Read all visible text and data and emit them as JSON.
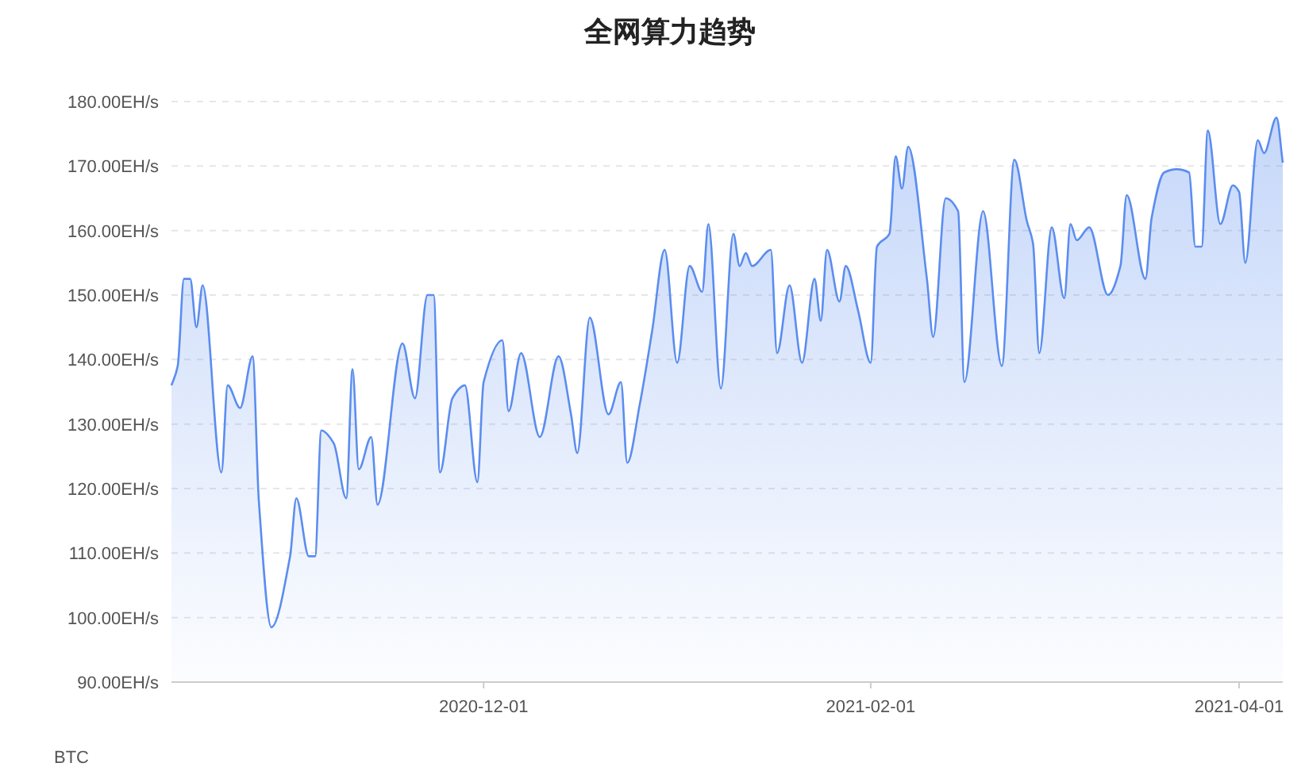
{
  "chart_data": {
    "type": "area",
    "title": "全网算力趋势",
    "annotations": [
      "BTC"
    ],
    "x": [
      "2020-10-12",
      "2020-10-13",
      "2020-10-14",
      "2020-10-15",
      "2020-10-16",
      "2020-10-17",
      "2020-10-20",
      "2020-10-21",
      "2020-10-23",
      "2020-10-25",
      "2020-10-26",
      "2020-10-28",
      "2020-10-31",
      "2020-11-01",
      "2020-11-03",
      "2020-11-04",
      "2020-11-05",
      "2020-11-07",
      "2020-11-09",
      "2020-11-10",
      "2020-11-11",
      "2020-11-13",
      "2020-11-14",
      "2020-11-18",
      "2020-11-20",
      "2020-11-22",
      "2020-11-23",
      "2020-11-24",
      "2020-11-26",
      "2020-11-28",
      "2020-11-30",
      "2020-12-01",
      "2020-12-04",
      "2020-12-05",
      "2020-12-07",
      "2020-12-10",
      "2020-12-13",
      "2020-12-15",
      "2020-12-16",
      "2020-12-18",
      "2020-12-21",
      "2020-12-23",
      "2020-12-24",
      "2020-12-26",
      "2020-12-28",
      "2020-12-30",
      "2021-01-01",
      "2021-01-03",
      "2021-01-05",
      "2021-01-06",
      "2021-01-08",
      "2021-01-10",
      "2021-01-11",
      "2021-01-12",
      "2021-01-13",
      "2021-01-16",
      "2021-01-17",
      "2021-01-19",
      "2021-01-21",
      "2021-01-23",
      "2021-01-24",
      "2021-01-25",
      "2021-01-27",
      "2021-01-28",
      "2021-01-30",
      "2021-02-01",
      "2021-02-02",
      "2021-02-04",
      "2021-02-05",
      "2021-02-06",
      "2021-02-07",
      "2021-02-10",
      "2021-02-11",
      "2021-02-13",
      "2021-02-15",
      "2021-02-16",
      "2021-02-19",
      "2021-02-22",
      "2021-02-24",
      "2021-02-26",
      "2021-02-27",
      "2021-02-28",
      "2021-03-02",
      "2021-03-04",
      "2021-03-05",
      "2021-03-06",
      "2021-03-08",
      "2021-03-11",
      "2021-03-13",
      "2021-03-14",
      "2021-03-17",
      "2021-03-18",
      "2021-03-20",
      "2021-03-22",
      "2021-03-24",
      "2021-03-25",
      "2021-03-26",
      "2021-03-27",
      "2021-03-29",
      "2021-03-31",
      "2021-04-01",
      "2021-04-02",
      "2021-04-04",
      "2021-04-05",
      "2021-04-07",
      "2021-04-08"
    ],
    "series": [
      {
        "color": "#5b8def",
        "values": [
          136,
          139,
          152.5,
          152.5,
          145,
          151.5,
          122.5,
          136,
          132.5,
          140.5,
          118,
          98.5,
          109.5,
          118.5,
          109.5,
          109.5,
          129,
          127,
          118.5,
          138.5,
          123,
          128,
          117.5,
          142.5,
          134,
          150,
          150,
          122.5,
          134,
          136,
          121,
          136.5,
          143,
          132,
          141,
          128,
          140.5,
          131.5,
          125.5,
          146.5,
          131.5,
          136.5,
          124,
          133,
          144.5,
          157,
          139.5,
          154.5,
          150.5,
          161,
          135.5,
          159.5,
          154.5,
          156.5,
          154.5,
          157,
          141,
          151.5,
          139.5,
          152.5,
          146,
          157,
          149,
          154.5,
          147.5,
          139.5,
          157.5,
          159.5,
          171.5,
          166.5,
          173,
          152.5,
          143.5,
          165,
          163,
          136.5,
          163,
          139,
          171,
          161.5,
          158,
          141,
          160.5,
          149.5,
          161,
          158.5,
          160.5,
          150,
          154.5,
          165.5,
          152.5,
          162,
          169,
          169.5,
          169,
          157.5,
          157.5,
          175.5,
          161,
          167,
          166,
          155,
          174,
          172,
          177.5,
          170.5
        ]
      }
    ],
    "xlim": [
      "2020-10-12",
      "2021-04-08"
    ],
    "xticks": [
      {
        "value": "2020-12-01",
        "label": "2020-12-01"
      },
      {
        "value": "2021-02-01",
        "label": "2021-02-01"
      },
      {
        "value": "2021-04-01",
        "label": "2021-04-01"
      }
    ],
    "ylim": [
      90,
      180
    ],
    "yticks": [
      {
        "value": 90,
        "label": "90.00EH/s"
      },
      {
        "value": 100,
        "label": "100.00EH/s"
      },
      {
        "value": 110,
        "label": "110.00EH/s"
      },
      {
        "value": 120,
        "label": "120.00EH/s"
      },
      {
        "value": 130,
        "label": "130.00EH/s"
      },
      {
        "value": 140,
        "label": "140.00EH/s"
      },
      {
        "value": 150,
        "label": "150.00EH/s"
      },
      {
        "value": 160,
        "label": "160.00EH/s"
      },
      {
        "value": 170,
        "label": "170.00EH/s"
      },
      {
        "value": 180,
        "label": "180.00EH/s"
      }
    ],
    "grid": "y",
    "marker": "none",
    "line_style": "solid"
  }
}
